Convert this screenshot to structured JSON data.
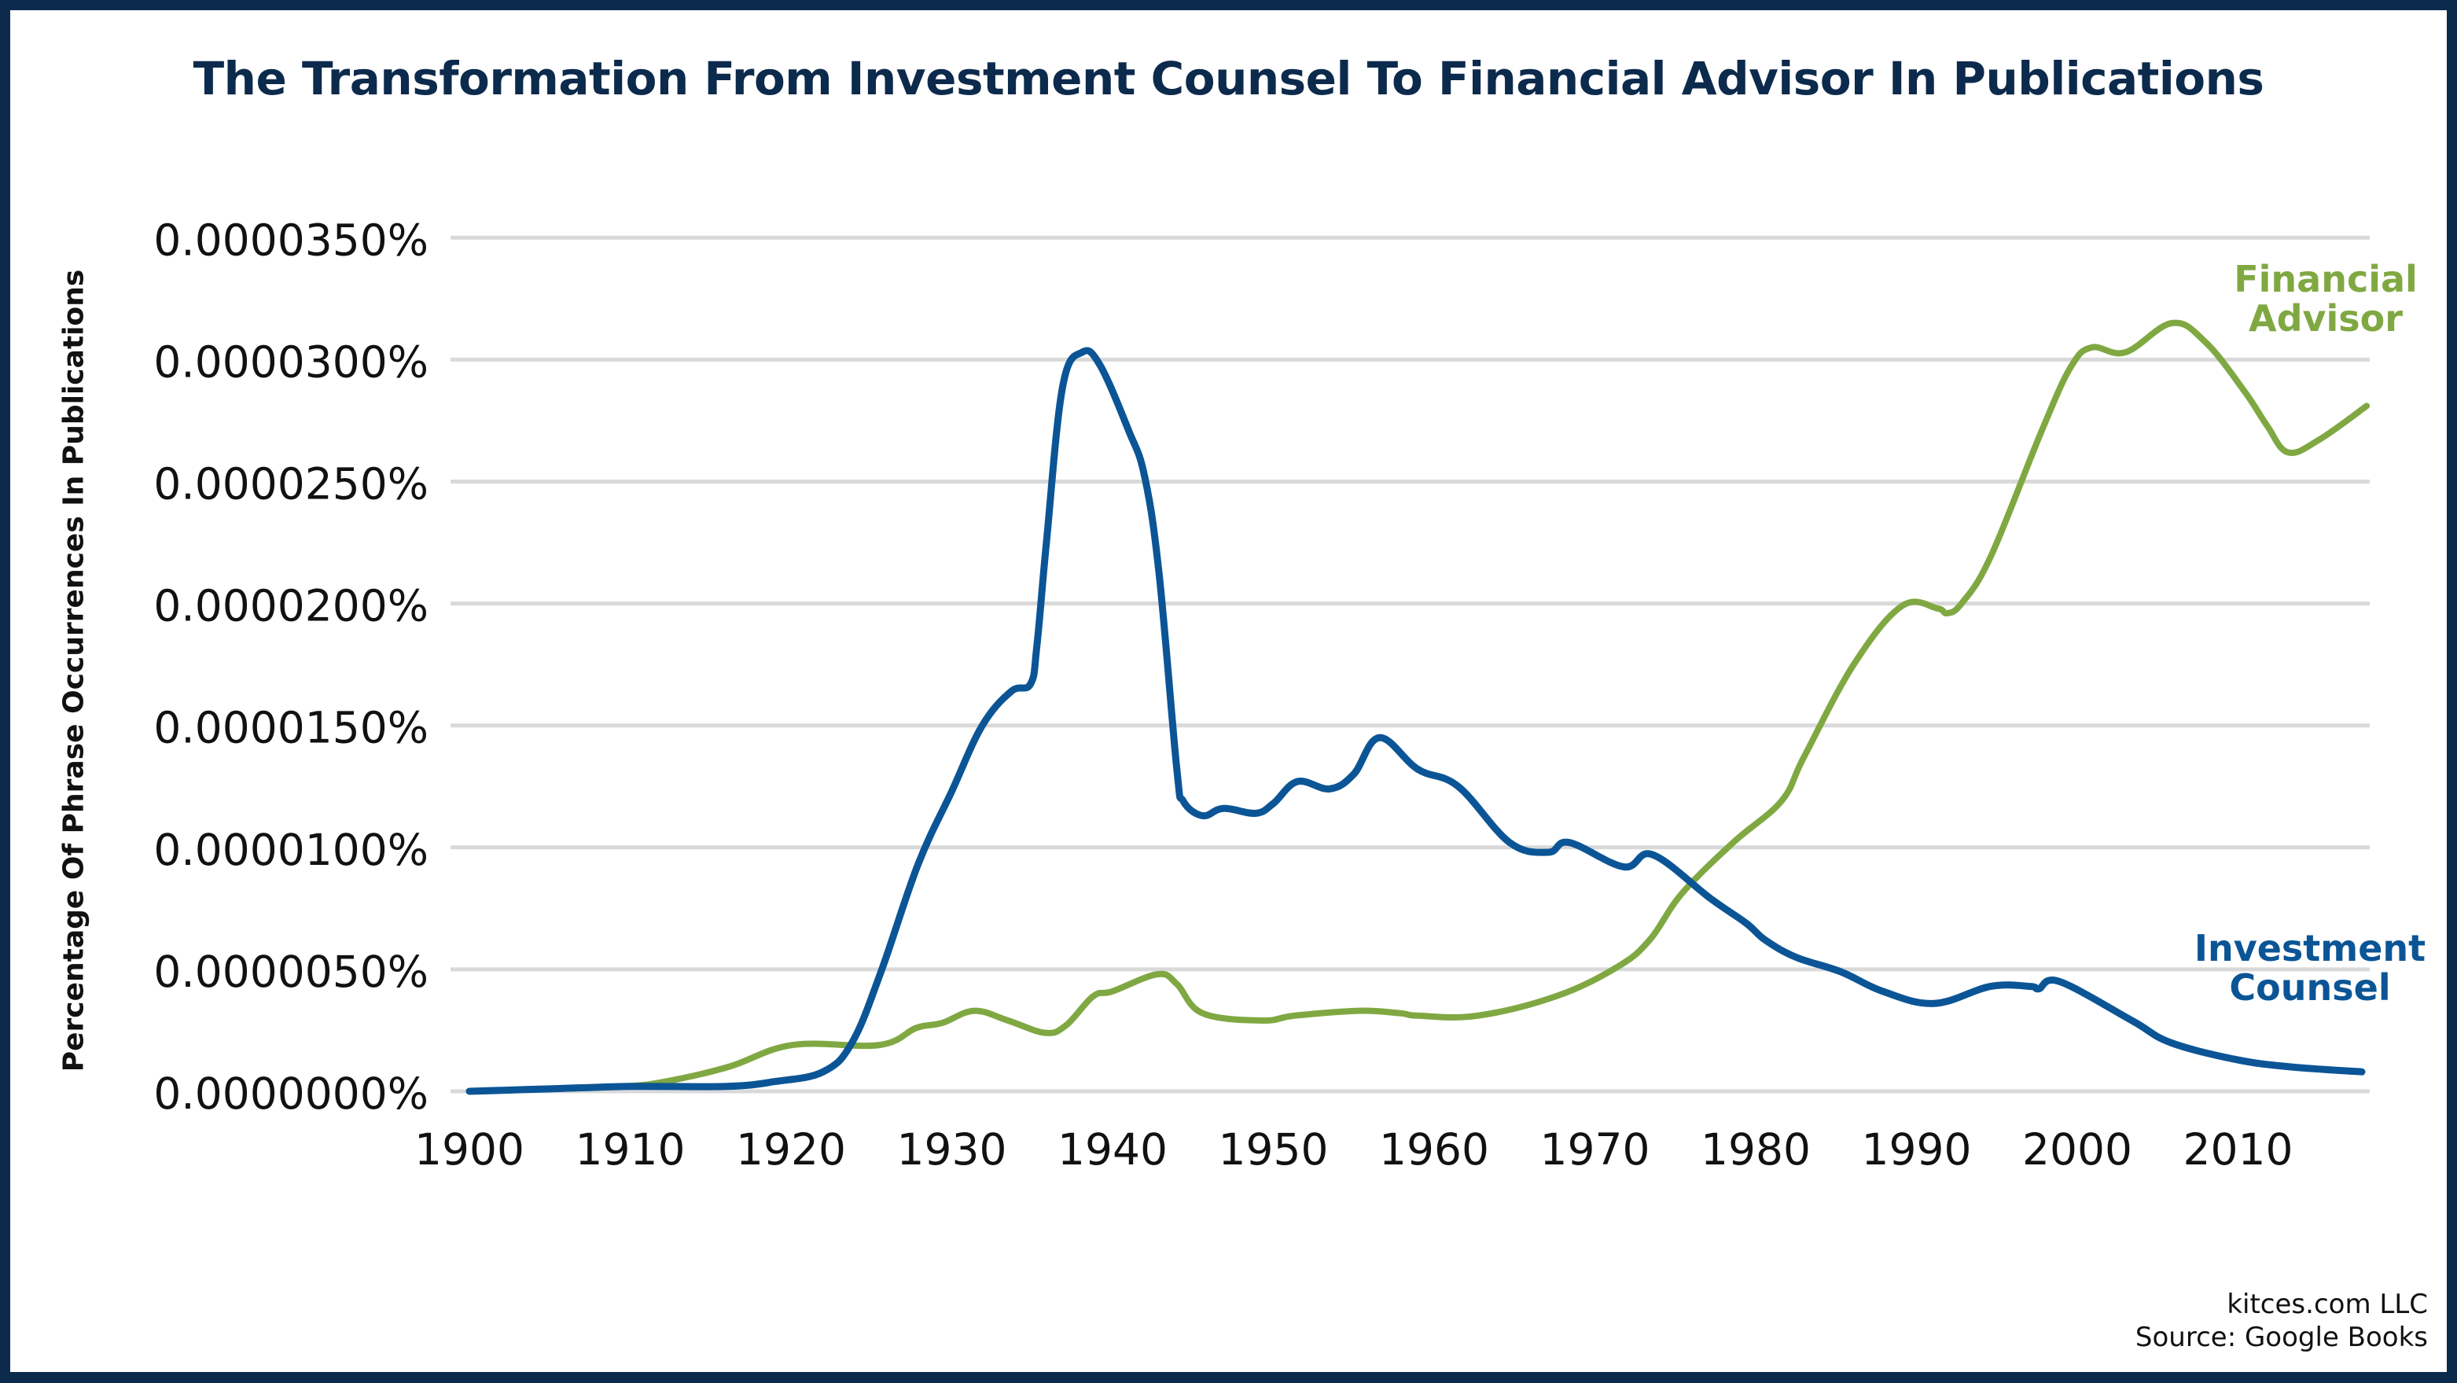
{
  "colors": {
    "border": "#0c2a4c",
    "title": "#0c2a4c",
    "investment_counsel": "#0b5596",
    "financial_advisor": "#80a842",
    "grid": "#d9d9d9"
  },
  "footer": {
    "credit": "kitces.com LLC",
    "source": "Source: Google Books"
  },
  "chart_data": {
    "type": "line",
    "title": "The Transformation From Investment Counsel To Financial Advisor In Publications",
    "xlabel": "",
    "ylabel": "Percentage Of Phrase Occurrences In Publications",
    "xlim": [
      1900,
      2018
    ],
    "ylim": [
      0,
      3.5e-05
    ],
    "grid": true,
    "legend": "inline-right",
    "x_ticks": [
      1900,
      1910,
      1920,
      1930,
      1940,
      1950,
      1960,
      1970,
      1980,
      1990,
      2000,
      2010
    ],
    "x_tick_labels": [
      "1900",
      "1910",
      "1920",
      "1930",
      "1940",
      "1950",
      "1960",
      "1970",
      "1980",
      "1990",
      "2000",
      "2010"
    ],
    "y_ticks": [
      0,
      5e-06,
      1e-05,
      1.5e-05,
      2e-05,
      2.5e-05,
      3e-05,
      3.5e-05
    ],
    "y_tick_labels": [
      "0.0000000%",
      "0.0000050%",
      "0.0000100%",
      "0.0000150%",
      "0.0000200%",
      "0.0000250%",
      "0.0000300%",
      "0.0000350%"
    ],
    "series": [
      {
        "name": "Investment Counsel",
        "label_lines": [
          "Investment",
          "Counsel"
        ],
        "color_key": "investment_counsel",
        "x": [
          1900,
          1905,
          1910,
          1916,
          1919,
          1922,
          1923.8,
          1925.6,
          1927.9,
          1930,
          1931.9,
          1933.7,
          1934.9,
          1935.3,
          1935.9,
          1936.9,
          1938.1,
          1939.2,
          1941,
          1942,
          1942.9,
          1944,
          1944.4,
          1945.6,
          1946.9,
          1948.9,
          1950,
          1951.5,
          1953.5,
          1955,
          1956.6,
          1959,
          1961.5,
          1964.7,
          1967.1,
          1968.4,
          1971.8,
          1973.6,
          1977.2,
          1979.4,
          1980.6,
          1982.5,
          1985.3,
          1987.9,
          1991.1,
          1994.6,
          1997.1,
          1997.6,
          1998.9,
          2003.4,
          2005.8,
          2009.9,
          2013.3,
          2017.7
        ],
        "values": [
          0,
          1e-07,
          2e-07,
          2e-07,
          4e-07,
          8e-07,
          2e-06,
          4.9e-06,
          9.3e-06,
          1.23e-05,
          1.5e-05,
          1.64e-05,
          1.67e-05,
          1.83e-05,
          2.26e-05,
          2.89e-05,
          3.03e-05,
          2.98e-05,
          2.71e-05,
          2.52e-05,
          2.12e-05,
          1.32e-05,
          1.19e-05,
          1.13e-05,
          1.16e-05,
          1.14e-05,
          1.18e-05,
          1.27e-05,
          1.24e-05,
          1.3e-05,
          1.45e-05,
          1.32e-05,
          1.25e-05,
          1.02e-05,
          9.8e-06,
          1.02e-05,
          9.2e-06,
          9.7e-06,
          7.9e-06,
          6.9e-06,
          6.2e-06,
          5.5e-06,
          4.9e-06,
          4.1e-06,
          3.6e-06,
          4.3e-06,
          4.3e-06,
          4.2e-06,
          4.5e-06,
          2.9e-06,
          2e-06,
          1.3e-06,
          1e-06,
          8e-07
        ]
      },
      {
        "name": "Financial Advisor",
        "label_lines": [
          "Financial",
          "Advisor"
        ],
        "color_key": "financial_advisor",
        "x": [
          1900,
          1905,
          1909.6,
          1912.2,
          1916.1,
          1920.1,
          1925.5,
          1927.8,
          1929.4,
          1931.4,
          1933.5,
          1935.8,
          1937.1,
          1938.8,
          1940,
          1942.8,
          1944,
          1945.6,
          1949.3,
          1951.3,
          1955.3,
          1957.9,
          1959,
          1962.7,
          1967.6,
          1971.4,
          1973.4,
          1975.4,
          1978.6,
          1981.6,
          1983,
          1986.1,
          1989.1,
          1991.3,
          1991.9,
          1992.8,
          1994.6,
          1997.8,
          1999.6,
          2000.9,
          2003,
          2005.9,
          2008,
          2010.4,
          2011.8,
          2013.1,
          2015,
          2018
        ],
        "values": [
          0,
          1e-07,
          2e-07,
          4e-07,
          1e-06,
          1.9e-06,
          1.9e-06,
          2.6e-06,
          2.8e-06,
          3.3e-06,
          2.9e-06,
          2.4e-06,
          2.7e-06,
          3.9e-06,
          4.1e-06,
          4.8e-06,
          4.4e-06,
          3.2e-06,
          2.9e-06,
          3.1e-06,
          3.3e-06,
          3.2e-06,
          3.1e-06,
          3.1e-06,
          3.9e-06,
          5.1e-06,
          6.2e-06,
          8.1e-06,
          1.02e-05,
          1.19e-05,
          1.37e-05,
          1.75e-05,
          1.99e-05,
          1.98e-05,
          1.96e-05,
          2e-05,
          2.19e-05,
          2.71e-05,
          2.97e-05,
          3.05e-05,
          3.03e-05,
          3.15e-05,
          3.07e-05,
          2.87e-05,
          2.73e-05,
          2.62e-05,
          2.67e-05,
          2.81e-05
        ]
      }
    ]
  }
}
